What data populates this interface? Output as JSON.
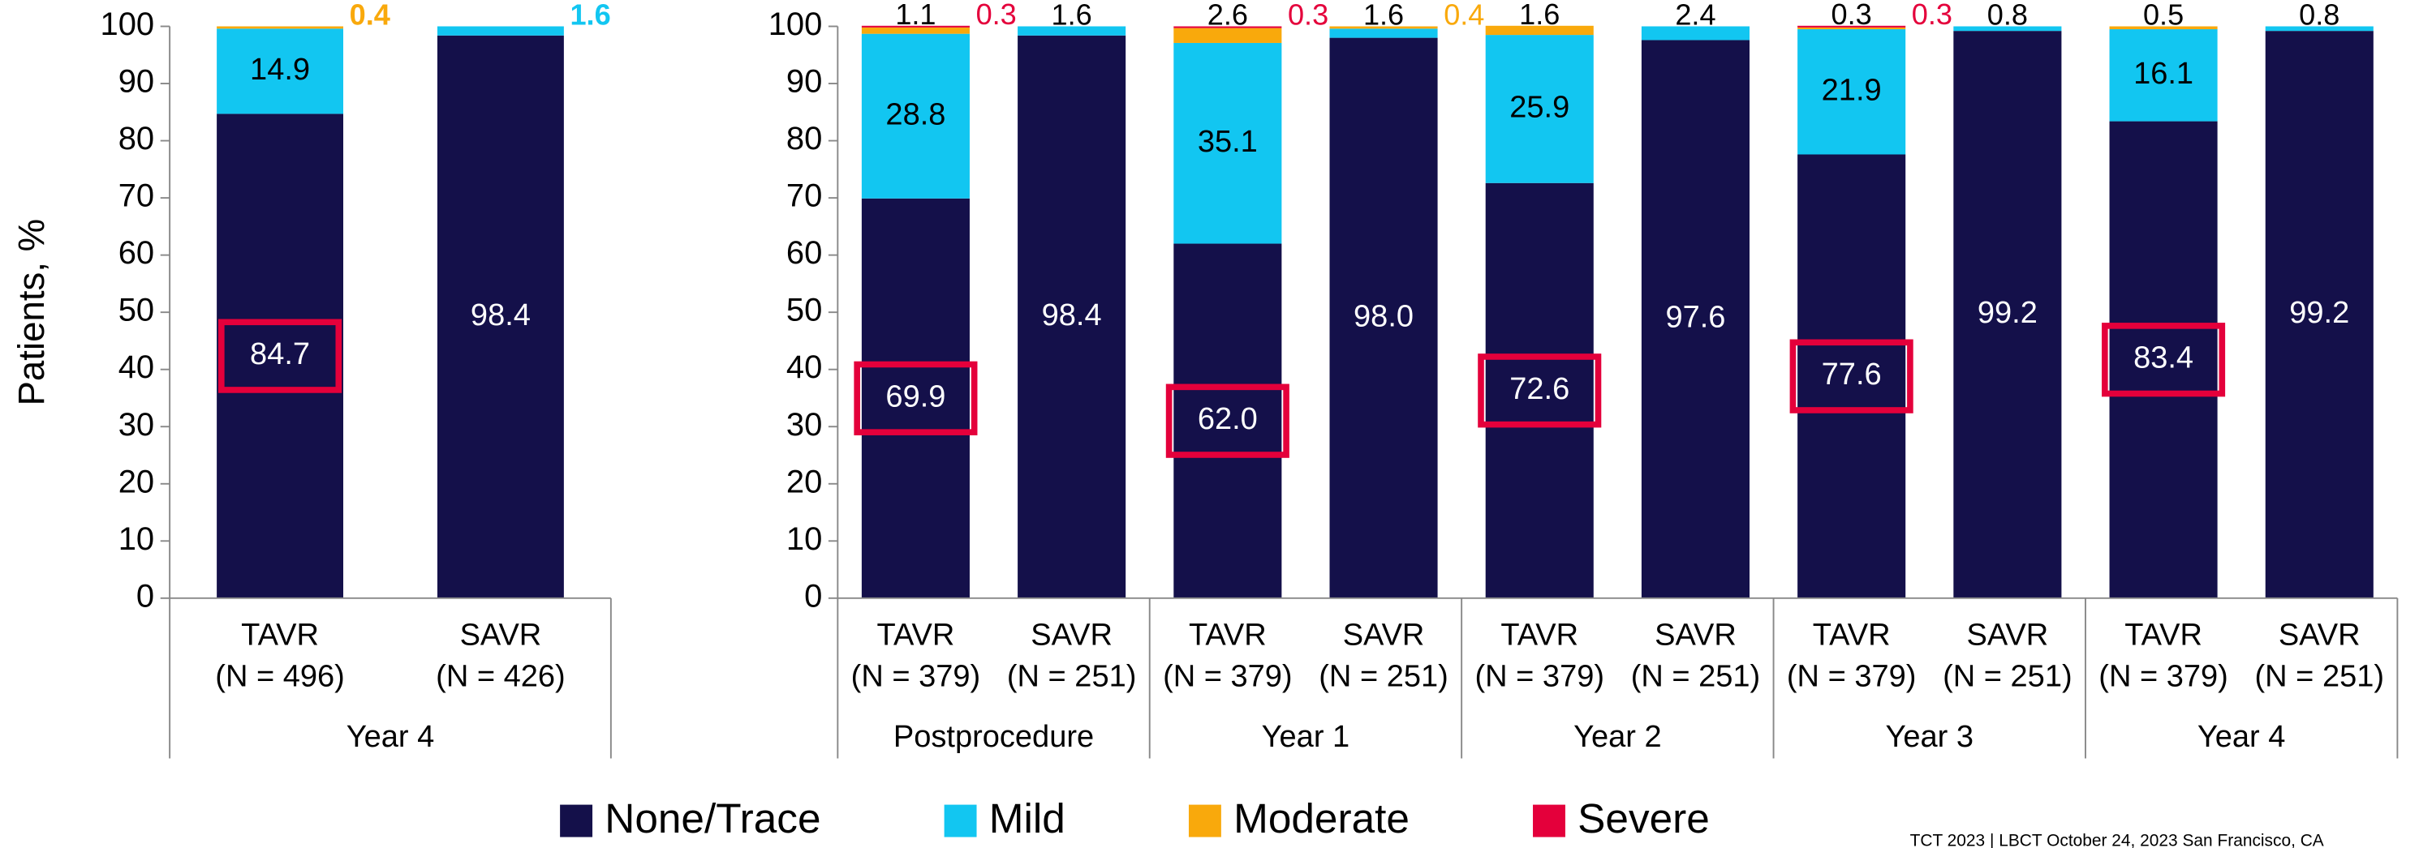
{
  "chart_data": [
    {
      "type": "stacked-bar",
      "y_label": "Patients, %",
      "categories": [
        "TAVR",
        "SAVR"
      ],
      "category_n": [
        "(N = 496)",
        "(N = 426)"
      ],
      "groups": [
        "Year 4"
      ],
      "ylim": [
        0,
        100
      ],
      "yticks": [
        0,
        10,
        20,
        30,
        40,
        50,
        60,
        70,
        80,
        90,
        100
      ],
      "small_labels": "colored",
      "highlight_color": "#e4003b",
      "series": [
        {
          "name": "None/Trace",
          "color": "#14104a",
          "values": [
            84.7,
            98.4
          ],
          "value_labels": [
            "84.7",
            "98.4"
          ]
        },
        {
          "name": "Mild",
          "color": "#12c6f1",
          "values": [
            14.9,
            1.6
          ],
          "value_labels": [
            "14.9",
            "1.6"
          ]
        },
        {
          "name": "Moderate",
          "color": "#f9a90c",
          "values": [
            0.4,
            null
          ],
          "value_labels": [
            "0.4",
            null
          ]
        },
        {
          "name": "Severe",
          "color": "#e4003b",
          "values": [
            null,
            null
          ],
          "value_labels": [
            null,
            null
          ]
        }
      ]
    },
    {
      "type": "stacked-bar",
      "categories": [
        "TAVR",
        "SAVR",
        "TAVR",
        "SAVR",
        "TAVR",
        "SAVR",
        "TAVR",
        "SAVR",
        "TAVR",
        "SAVR"
      ],
      "category_n": [
        "(N = 379)",
        "(N = 251)",
        "(N = 379)",
        "(N = 251)",
        "(N = 379)",
        "(N = 251)",
        "(N = 379)",
        "(N = 251)",
        "(N = 379)",
        "(N = 251)"
      ],
      "groups": [
        "Postprocedure",
        "Year 1",
        "Year 2",
        "Year 3",
        "Year 4"
      ],
      "ylim": [
        0,
        100
      ],
      "yticks": [
        0,
        10,
        20,
        30,
        40,
        50,
        60,
        70,
        80,
        90,
        100
      ],
      "small_labels": "first-dark",
      "highlight_color": "#e4003b",
      "series": [
        {
          "name": "None/Trace",
          "color": "#14104a",
          "values": [
            69.9,
            98.4,
            62.0,
            98.0,
            72.6,
            97.6,
            77.6,
            99.2,
            83.4,
            99.2
          ],
          "value_labels": [
            "69.9",
            "98.4",
            "62.0",
            "98.0",
            "72.6",
            "97.6",
            "77.6",
            "99.2",
            "83.4",
            "99.2"
          ]
        },
        {
          "name": "Mild",
          "color": "#12c6f1",
          "values": [
            28.8,
            1.6,
            35.1,
            1.6,
            25.9,
            2.4,
            21.9,
            0.8,
            16.1,
            0.8
          ],
          "value_labels": [
            "28.8",
            "1.6",
            "35.1",
            "1.6",
            "25.9",
            "2.4",
            "21.9",
            "0.8",
            "16.1",
            "0.8"
          ]
        },
        {
          "name": "Moderate",
          "color": "#f9a90c",
          "values": [
            1.1,
            null,
            2.6,
            0.4,
            1.6,
            null,
            0.3,
            null,
            0.5,
            null
          ],
          "value_labels": [
            "1.1",
            null,
            "2.6",
            "0.4",
            "1.6",
            null,
            "0.3",
            null,
            "0.5",
            null
          ]
        },
        {
          "name": "Severe",
          "color": "#e4003b",
          "values": [
            0.3,
            null,
            0.3,
            null,
            null,
            null,
            0.3,
            null,
            null,
            null
          ],
          "value_labels": [
            "0.3",
            null,
            "0.3",
            null,
            null,
            null,
            "0.3",
            null,
            null,
            null
          ]
        }
      ]
    }
  ],
  "footnote": "TCT 2023 | LBCT October 24, 2023 San Francisco, CA"
}
